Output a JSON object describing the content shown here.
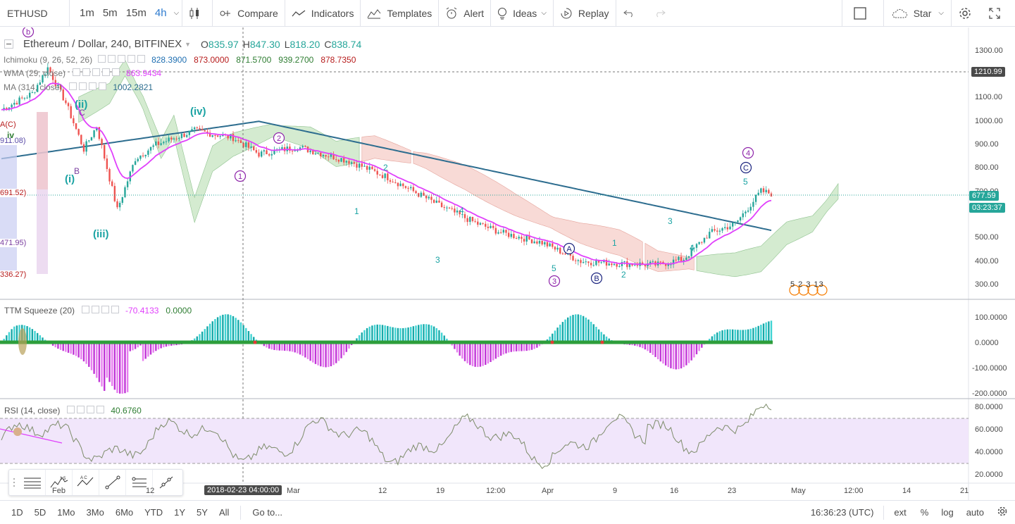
{
  "toolbar": {
    "symbol": "ETHUSD",
    "intervals": [
      "1m",
      "5m",
      "15m",
      "4h"
    ],
    "active_interval": "4h",
    "compare": "Compare",
    "indicators": "Indicators",
    "templates": "Templates",
    "alert": "Alert",
    "ideas": "Ideas",
    "replay": "Replay",
    "star": "Star"
  },
  "legend": {
    "title": "Ethereum / Dollar, 240, BITFINEX",
    "ohlc": [
      {
        "label": "O",
        "value": "835.97"
      },
      {
        "label": "H",
        "value": "847.30"
      },
      {
        "label": "L",
        "value": "818.20"
      },
      {
        "label": "C",
        "value": "838.74"
      }
    ],
    "ichimoku": {
      "name": "Ichimoku (9, 26, 52, 26)",
      "values": [
        "828.3900",
        "873.0000",
        "871.5700",
        "939.2700",
        "878.7350"
      ],
      "colors": [
        "#1f6fb2",
        "#b71c1c",
        "#2e7d32",
        "#2e7d32",
        "#b71c1c"
      ]
    },
    "wma": {
      "name": "WMA (29, close)",
      "value": "863.9434",
      "color": "#e040fb"
    },
    "ma": {
      "name": "MA (314, close)",
      "value": "1002.2821",
      "color": "#2d6d8f"
    }
  },
  "price_axis": {
    "ticks": [
      "1300.00",
      "1200.00",
      "1100.00",
      "1000.00",
      "900.00",
      "800.00",
      "700.00",
      "600.00",
      "500.00",
      "400.00",
      "300.00"
    ],
    "crosshair_price": "1210.99",
    "last_price": "677.59",
    "countdown": "03:23:37"
  },
  "left_axis_labels": [
    "911.08)",
    "691.52)",
    "471.95)",
    "336.27)"
  ],
  "waves": {
    "primary": [
      "1",
      "2",
      "3",
      "4",
      "5"
    ],
    "roman": [
      "(i)",
      "(ii)",
      "(iii)",
      "(iv)"
    ],
    "abc": [
      "A",
      "B",
      "C"
    ],
    "minor": [
      "1",
      "2",
      "3",
      "4",
      "5"
    ],
    "letters": [
      "B",
      "C",
      "iv",
      "A(C)"
    ]
  },
  "events_label": "5  2  3  13",
  "ttm": {
    "name": "TTM Squeeze (20)",
    "values": [
      "-70.4133",
      "0.0000"
    ],
    "colors": [
      "#e040fb",
      "#2e7d32"
    ],
    "ticks": [
      "100.0000",
      "0.0000",
      "-100.0000",
      "-200.0000"
    ]
  },
  "rsi": {
    "name": "RSI (14, close)",
    "value": "40.6760",
    "color": "#2e7d32",
    "ticks": [
      "80.0000",
      "60.0000",
      "40.0000",
      "20.0000"
    ]
  },
  "time_axis": {
    "labels": [
      "Feb",
      "12",
      "Mar",
      "12",
      "19",
      "12:00",
      "Apr",
      "9",
      "16",
      "23",
      "May",
      "12:00",
      "14",
      "21"
    ],
    "crosshair_time": "2018-02-23 04:00:00"
  },
  "bottombar": {
    "ranges": [
      "1D",
      "5D",
      "1Mo",
      "3Mo",
      "6Mo",
      "YTD",
      "1Y",
      "5Y",
      "All"
    ],
    "goto": "Go to...",
    "clock": "16:36:23 (UTC)",
    "ext": "ext",
    "percent": "%",
    "log": "log",
    "auto": "auto"
  },
  "colors": {
    "up": "#26a69a",
    "down": "#ef5350",
    "ma314": "#2d6d8f",
    "wma": "#e040fb",
    "cloud_green": "#cde8c8",
    "cloud_red": "#f7d4cf",
    "rsi_band": "#f1e6fb"
  }
}
